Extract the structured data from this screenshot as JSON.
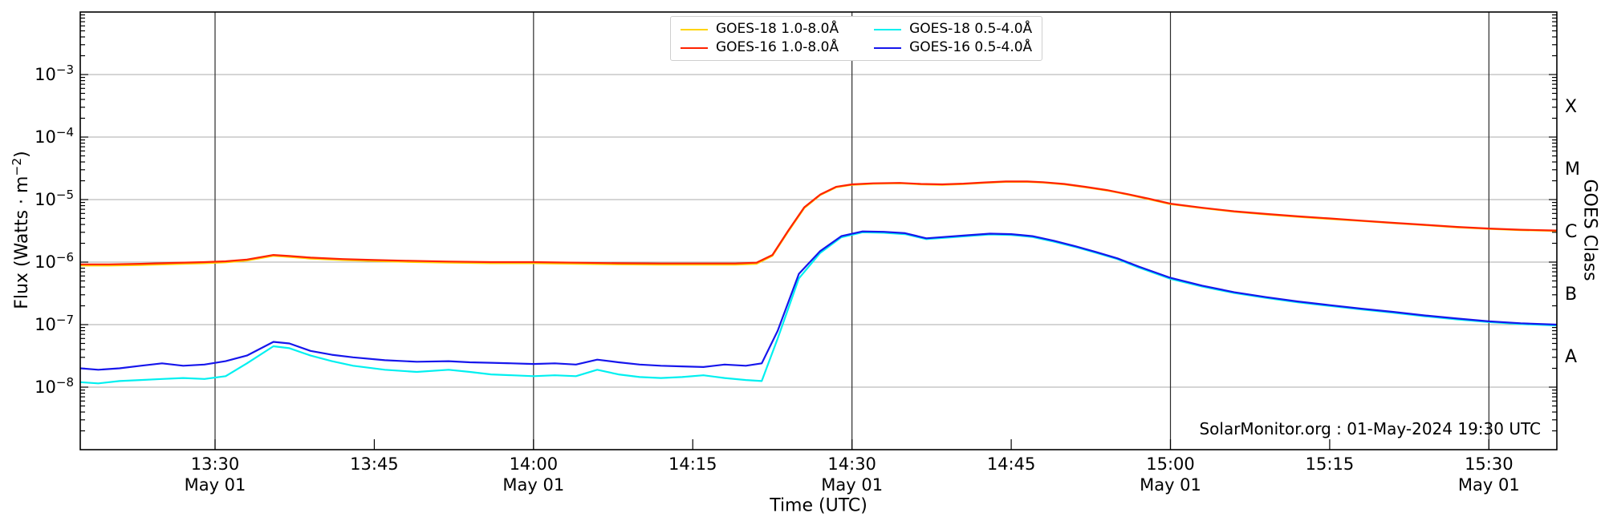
{
  "watermark": "SolarMonitor.org : 01-May-2024 19:30 UTC",
  "legend": {
    "items": [
      {
        "label": "GOES-18 1.0-8.0Å",
        "color": "#FFD400"
      },
      {
        "label": "GOES-16 1.0-8.0Å",
        "color": "#FF2200"
      },
      {
        "label": "GOES-18 0.5-4.0Å",
        "color": "#00F0F0"
      },
      {
        "label": "GOES-16 0.5-4.0Å",
        "color": "#1616EC"
      }
    ]
  },
  "axes": {
    "x": {
      "title": "Time (UTC)",
      "unit": "minutes after 13:00 UTC",
      "domain_min": 17.3,
      "domain_max": 156.4,
      "ticks": [
        {
          "minutes": 30,
          "label": "13:30",
          "date": "May 01"
        },
        {
          "minutes": 45,
          "label": "13:45"
        },
        {
          "minutes": 60,
          "label": "14:00",
          "date": "May 01"
        },
        {
          "minutes": 75,
          "label": "14:15"
        },
        {
          "minutes": 90,
          "label": "14:30",
          "date": "May 01"
        },
        {
          "minutes": 105,
          "label": "14:45"
        },
        {
          "minutes": 120,
          "label": "15:00",
          "date": "May 01"
        },
        {
          "minutes": 135,
          "label": "15:15"
        },
        {
          "minutes": 150,
          "label": "15:30",
          "date": "May 01"
        }
      ]
    },
    "y": {
      "title_prefix": "Flux (Watts · m",
      "title_sup": "−2",
      "title_suffix": ")",
      "exp_min": -9,
      "exp_max": -2,
      "labeled_exponents": [
        -3,
        -4,
        -5,
        -6,
        -7,
        -8
      ]
    },
    "right": {
      "title": "GOES Class",
      "classes": [
        {
          "label": "X",
          "exp_center": -3.5
        },
        {
          "label": "M",
          "exp_center": -4.5
        },
        {
          "label": "C",
          "exp_center": -5.5
        },
        {
          "label": "B",
          "exp_center": -6.5
        },
        {
          "label": "A",
          "exp_center": -7.5
        }
      ]
    }
  },
  "chart_data": {
    "type": "line",
    "title": "",
    "xlabel": "Time (UTC)",
    "ylabel": "Flux (Watts · m⁻²)",
    "right_axis_label": "GOES Class",
    "y_scale": "log",
    "ylim": [
      1e-09,
      0.01
    ],
    "x_unit": "minutes after 13:00 UTC, 01-May-2024",
    "xlim": [
      17.3,
      156.4
    ],
    "grid": {
      "horizontal_decades": true,
      "vertical_every_30min": true
    },
    "legend_position": "top center",
    "series": [
      {
        "name": "GOES-18 1.0-8.0Å",
        "color": "#FFD400",
        "x": [
          17.3,
          20,
          23,
          26,
          29,
          31,
          33,
          35.5,
          37,
          39,
          42,
          45,
          48,
          52,
          56,
          60,
          64,
          68,
          72,
          76,
          79,
          81,
          82.5,
          84,
          85.5,
          87,
          88.5,
          90,
          92,
          94.5,
          96.5,
          98.5,
          100.5,
          102.5,
          104.5,
          106.5,
          108,
          110,
          112,
          114,
          116,
          118,
          120,
          123,
          126,
          129,
          132,
          135,
          138,
          141,
          144,
          147,
          150,
          153,
          156.4
        ],
        "y": [
          8.8e-07,
          8.8e-07,
          9e-07,
          9.3e-07,
          9.6e-07,
          9.9e-07,
          1.06e-06,
          1.26e-06,
          1.21e-06,
          1.14e-06,
          1.08e-06,
          1.04e-06,
          1.01e-06,
          9.8e-07,
          9.6e-07,
          9.6e-07,
          9.4e-07,
          9.2e-07,
          9.1e-07,
          9.1e-07,
          9.1e-07,
          9.4e-07,
          1.26e-06,
          3.1e-06,
          7.3e-06,
          1.18e-05,
          1.57e-05,
          1.72e-05,
          1.79e-05,
          1.82e-05,
          1.75e-05,
          1.72e-05,
          1.77e-05,
          1.85e-05,
          1.92e-05,
          1.92e-05,
          1.87e-05,
          1.75e-05,
          1.57e-05,
          1.4e-05,
          1.2e-05,
          1.01e-05,
          8.45e-06,
          7.3e-06,
          6.4e-06,
          5.8e-06,
          5.3e-06,
          4.9e-06,
          4.55e-06,
          4.2e-06,
          3.9e-06,
          3.6e-06,
          3.4e-06,
          3.25e-06,
          3.15e-06
        ]
      },
      {
        "name": "GOES-16 1.0-8.0Å",
        "color": "#FF2200",
        "x": [
          17.3,
          20,
          23,
          26,
          29,
          31,
          33,
          35.5,
          37,
          39,
          42,
          45,
          48,
          52,
          56,
          60,
          64,
          68,
          72,
          76,
          79,
          81,
          82.5,
          84,
          85.5,
          87,
          88.5,
          90,
          92,
          94.5,
          96.5,
          98.5,
          100.5,
          102.5,
          104.5,
          106.5,
          108,
          110,
          112,
          114,
          116,
          118,
          120,
          123,
          126,
          129,
          132,
          135,
          138,
          141,
          144,
          147,
          150,
          153,
          156.4
        ],
        "y": [
          9.2e-07,
          9.2e-07,
          9.4e-07,
          9.7e-07,
          1e-06,
          1.03e-06,
          1.1e-06,
          1.3e-06,
          1.25e-06,
          1.18e-06,
          1.12e-06,
          1.08e-06,
          1.05e-06,
          1.02e-06,
          1e-06,
          1e-06,
          9.8e-07,
          9.6e-07,
          9.5e-07,
          9.5e-07,
          9.5e-07,
          9.8e-07,
          1.3e-06,
          3.2e-06,
          7.5e-06,
          1.2e-05,
          1.6e-05,
          1.75e-05,
          1.82e-05,
          1.85e-05,
          1.78e-05,
          1.75e-05,
          1.8e-05,
          1.88e-05,
          1.95e-05,
          1.95e-05,
          1.9e-05,
          1.78e-05,
          1.6e-05,
          1.42e-05,
          1.22e-05,
          1.03e-05,
          8.6e-06,
          7.4e-06,
          6.5e-06,
          5.9e-06,
          5.4e-06,
          5e-06,
          4.6e-06,
          4.25e-06,
          3.95e-06,
          3.65e-06,
          3.45e-06,
          3.3e-06,
          3.2e-06
        ]
      },
      {
        "name": "GOES-18 0.5-4.0Å",
        "color": "#00F0F0",
        "x": [
          17.3,
          19,
          21,
          23,
          25,
          27,
          29,
          31,
          33,
          35.5,
          37,
          39,
          41,
          43,
          46,
          49,
          52,
          54,
          56,
          58,
          60,
          62,
          64,
          66,
          68,
          70,
          72,
          74,
          76,
          78,
          80,
          81.5,
          83,
          85,
          87,
          89,
          91,
          93,
          95,
          97,
          99,
          101,
          103,
          105,
          107,
          109,
          111,
          113,
          115,
          117,
          120,
          123,
          126,
          129,
          132,
          135,
          138,
          141,
          144,
          147,
          150,
          153,
          156.4
        ],
        "y": [
          1.2e-08,
          1.15e-08,
          1.25e-08,
          1.3e-08,
          1.35e-08,
          1.4e-08,
          1.35e-08,
          1.5e-08,
          2.4e-08,
          4.5e-08,
          4.2e-08,
          3.2e-08,
          2.6e-08,
          2.2e-08,
          1.9e-08,
          1.75e-08,
          1.9e-08,
          1.75e-08,
          1.6e-08,
          1.55e-08,
          1.5e-08,
          1.55e-08,
          1.5e-08,
          1.9e-08,
          1.6e-08,
          1.45e-08,
          1.4e-08,
          1.45e-08,
          1.55e-08,
          1.4e-08,
          1.3e-08,
          1.25e-08,
          6e-08,
          5.5e-07,
          1.4e-06,
          2.5e-06,
          3e-06,
          2.95e-06,
          2.8e-06,
          2.33e-06,
          2.47e-06,
          2.62e-06,
          2.77e-06,
          2.72e-06,
          2.52e-06,
          2.13e-06,
          1.75e-06,
          1.41e-06,
          1.12e-06,
          8.2e-07,
          5.4e-07,
          4.05e-07,
          3.2e-07,
          2.67e-07,
          2.28e-07,
          1.99e-07,
          1.75e-07,
          1.55e-07,
          1.36e-07,
          1.21e-07,
          1.1e-07,
          1.02e-07,
          9.7e-08
        ]
      },
      {
        "name": "GOES-16 0.5-4.0Å",
        "color": "#1616EC",
        "x": [
          17.3,
          19,
          21,
          23,
          25,
          27,
          29,
          31,
          33,
          35.5,
          37,
          39,
          41,
          43,
          46,
          49,
          52,
          54,
          56,
          58,
          60,
          62,
          64,
          66,
          68,
          70,
          72,
          74,
          76,
          78,
          80,
          81.5,
          83,
          85,
          87,
          89,
          91,
          93,
          95,
          97,
          99,
          101,
          103,
          105,
          107,
          109,
          111,
          113,
          115,
          117,
          120,
          123,
          126,
          129,
          132,
          135,
          138,
          141,
          144,
          147,
          150,
          153,
          156.4
        ],
        "y": [
          2e-08,
          1.9e-08,
          2e-08,
          2.2e-08,
          2.4e-08,
          2.2e-08,
          2.3e-08,
          2.6e-08,
          3.2e-08,
          5.3e-08,
          5e-08,
          3.8e-08,
          3.3e-08,
          3e-08,
          2.7e-08,
          2.55e-08,
          2.6e-08,
          2.5e-08,
          2.45e-08,
          2.4e-08,
          2.35e-08,
          2.4e-08,
          2.3e-08,
          2.75e-08,
          2.5e-08,
          2.3e-08,
          2.2e-08,
          2.15e-08,
          2.1e-08,
          2.3e-08,
          2.2e-08,
          2.4e-08,
          8e-08,
          6.5e-07,
          1.5e-06,
          2.6e-06,
          3.1e-06,
          3.05e-06,
          2.9e-06,
          2.4e-06,
          2.55e-06,
          2.7e-06,
          2.85e-06,
          2.8e-06,
          2.6e-06,
          2.2e-06,
          1.8e-06,
          1.45e-06,
          1.15e-06,
          8.5e-07,
          5.6e-07,
          4.2e-07,
          3.3e-07,
          2.75e-07,
          2.35e-07,
          2.05e-07,
          1.8e-07,
          1.6e-07,
          1.4e-07,
          1.25e-07,
          1.13e-07,
          1.05e-07,
          1e-07
        ]
      }
    ],
    "colors": {
      "frame": "#000000",
      "vertical_gridline": "#2b2b2b",
      "horizontal_gridline": "#ababab"
    }
  }
}
